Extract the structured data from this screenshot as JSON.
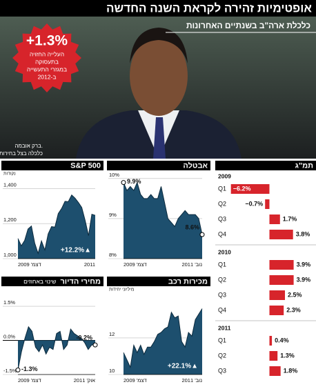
{
  "header": {
    "title": "אופטימיות זהירה לקראת השנה החדשה",
    "subtitle": "כלכלת ארה\"ב בשנתיים האחרונות"
  },
  "photo": {
    "badge_value": "+1.3%",
    "badge_text": [
      "העלייה החזויה",
      "בתעסוקה",
      "במגזרי התעשייה",
      "ב-2012"
    ],
    "caption": [
      "ברק אובמה.",
      "כלכלה בצל בחירות"
    ]
  },
  "chart_data": [
    {
      "type": "area",
      "title": "S&P 500",
      "y_label": "נקודות",
      "categories": [
        "דצמ' 2009",
        null,
        null,
        null,
        null,
        null,
        null,
        null,
        null,
        null,
        null,
        null,
        null,
        null,
        null,
        null,
        null,
        null,
        null,
        null,
        null,
        null,
        null,
        "2011"
      ],
      "values": [
        1115,
        1073,
        1104,
        1169,
        1186,
        1089,
        1030,
        1101,
        1049,
        1141,
        1183,
        1180,
        1257,
        1286,
        1327,
        1325,
        1363,
        1345,
        1320,
        1292,
        1218,
        1131,
        1253,
        1247
      ],
      "color": "#1d4f6e",
      "ylim": [
        1000,
        1480
      ],
      "yticks": [
        {
          "value": 1000,
          "label": "1,000"
        },
        {
          "value": 1200,
          "label": "1,200"
        },
        {
          "value": 1400,
          "label": "1,400"
        }
      ],
      "grid": true,
      "annotation": "+12.2%▲"
    },
    {
      "type": "area",
      "title": "אבטלה",
      "categories": [
        "דצמ' 2009",
        null,
        null,
        null,
        null,
        null,
        null,
        null,
        null,
        null,
        null,
        null,
        null,
        null,
        null,
        null,
        null,
        null,
        null,
        null,
        null,
        null,
        null,
        "נוב' 2011"
      ],
      "values": [
        9.9,
        9.7,
        9.8,
        9.7,
        9.9,
        9.6,
        9.5,
        9.5,
        9.6,
        9.5,
        9.5,
        9.8,
        9.4,
        9.0,
        8.9,
        8.8,
        9.0,
        9.1,
        9.2,
        9.1,
        9.1,
        9.1,
        9.0,
        8.6
      ],
      "value_labels": [
        "9.9%",
        null,
        null,
        null,
        null,
        null,
        null,
        null,
        null,
        null,
        null,
        null,
        null,
        null,
        null,
        null,
        null,
        null,
        null,
        null,
        null,
        null,
        null,
        "8.6%"
      ],
      "color": "#1d4f6e",
      "ylim": [
        8,
        10.1
      ],
      "yticks": [
        {
          "value": 8,
          "label": "8%"
        },
        {
          "value": 9,
          "label": "9%"
        },
        {
          "value": 10,
          "label": "10%"
        }
      ],
      "grid": true
    },
    {
      "type": "area",
      "title": "מחירי הדיור",
      "subtitle": "שינוי באחוזים",
      "categories": [
        "דצמ' 2009",
        null,
        null,
        null,
        null,
        null,
        null,
        null,
        null,
        null,
        null,
        null,
        null,
        null,
        null,
        null,
        null,
        null,
        null,
        null,
        null,
        null,
        "אוק' 2011"
      ],
      "values": [
        -1.3,
        -0.5,
        0.1,
        0.6,
        0.4,
        -0.3,
        -0.5,
        -0.2,
        -0.6,
        -0.3,
        -0.4,
        0.3,
        0.4,
        -0.4,
        -0.2,
        0.5,
        0.3,
        0.2,
        0.1,
        -0.1,
        -0.4,
        -0.2,
        -0.2
      ],
      "value_labels": [
        "-1.3%",
        null,
        null,
        null,
        null,
        null,
        null,
        null,
        null,
        null,
        null,
        null,
        null,
        null,
        null,
        null,
        null,
        null,
        null,
        null,
        null,
        null,
        "-0.2%"
      ],
      "color": "#1d4f6e",
      "ylim": [
        -1.5,
        2.2
      ],
      "yticks": [
        {
          "value": -1.5,
          "label": "-1.5%"
        },
        {
          "value": 0,
          "label": "0.0%"
        },
        {
          "value": 1.5,
          "label": "1.5%"
        }
      ],
      "grid": true
    },
    {
      "type": "area",
      "title": "מכירות רכב",
      "y_label": "מיליוני יחידות",
      "categories": [
        "דצמ' 2009",
        null,
        null,
        null,
        null,
        null,
        null,
        null,
        null,
        null,
        null,
        null,
        null,
        null,
        null,
        null,
        null,
        null,
        null,
        null,
        null,
        null,
        null,
        "נוב' 2011"
      ],
      "values": [
        11.2,
        10.8,
        10.4,
        11.6,
        11.2,
        11.6,
        11.1,
        11.5,
        11.5,
        11.8,
        12.2,
        12.3,
        12.5,
        12.6,
        13.4,
        13.1,
        13.2,
        11.8,
        11.5,
        12.3,
        12.1,
        13.0,
        13.3,
        13.6
      ],
      "color": "#1d4f6e",
      "ylim": [
        10,
        14.6
      ],
      "yticks": [
        10,
        12
      ],
      "grid": true,
      "annotation": "+22.1%▲"
    },
    {
      "type": "hbar",
      "title": "תמ\"ג",
      "color": "#d7242b",
      "xlim": [
        -8.5,
        6.5
      ],
      "groups": [
        {
          "name": "2009",
          "categories": [
            "Q1",
            "Q2",
            "Q3",
            "Q4"
          ],
          "values": [
            -6.2,
            -0.7,
            1.7,
            3.8
          ],
          "value_labels": [
            "−6.2%",
            "−0.7%",
            "1.7%",
            "3.8%"
          ]
        },
        {
          "name": "2010",
          "categories": [
            "Q1",
            "Q2",
            "Q3",
            "Q4"
          ],
          "values": [
            3.9,
            3.9,
            2.5,
            2.3
          ],
          "value_labels": [
            "3.9%",
            "3.9%",
            "2.5%",
            "2.3%"
          ]
        },
        {
          "name": "2011",
          "categories": [
            "Q1",
            "Q2",
            "Q3"
          ],
          "values": [
            0.4,
            1.3,
            1.8
          ],
          "value_labels": [
            "0.4%",
            "1.3%",
            "1.8%"
          ]
        }
      ]
    }
  ]
}
